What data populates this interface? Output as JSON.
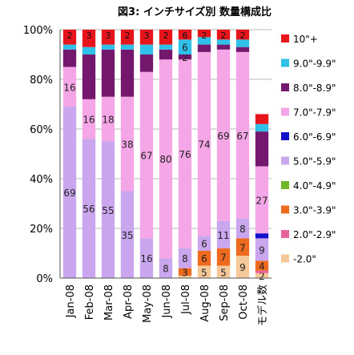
{
  "chart_data": {
    "type": "bar",
    "stacked": true,
    "title": "図3:  インチサイズ別  数量構成比",
    "xlabel": "",
    "ylabel": "",
    "ylim": [
      0,
      100
    ],
    "y_ticks": [
      "0%",
      "20%",
      "40%",
      "60%",
      "80%",
      "100%"
    ],
    "grid": true,
    "legend_position": "right",
    "categories": [
      "Jan-08",
      "Feb-08",
      "Mar-08",
      "Apr-08",
      "May-08",
      "Jun-08",
      "Jul-08",
      "Aug-08",
      "Sep-08",
      "Oct-08",
      "モデル数"
    ],
    "series": [
      {
        "name": "-2.0\"",
        "color": "#f5c89a",
        "values": [
          0,
          0,
          0,
          0,
          0,
          0,
          1,
          5,
          5,
          9,
          2
        ],
        "labels": [
          "",
          "",
          "",
          "",
          "",
          "",
          "",
          "5",
          "5",
          "9",
          "2"
        ]
      },
      {
        "name": "2.0\"-2.9\"",
        "color": "#e8609c",
        "values": [
          0,
          0,
          0,
          0,
          0,
          0,
          0,
          0,
          0,
          0,
          1
        ],
        "labels": [
          "",
          "",
          "",
          "",
          "",
          "",
          "",
          "",
          "",
          "",
          ""
        ]
      },
      {
        "name": "3.0\"-3.9\"",
        "color": "#ee6a1e",
        "values": [
          0,
          0,
          0,
          0,
          0,
          0,
          3,
          6,
          7,
          7,
          4
        ],
        "labels": [
          "",
          "",
          "",
          "",
          "",
          "",
          "3",
          "6",
          "7",
          "7",
          "4"
        ]
      },
      {
        "name": "4.0\"-4.9\"",
        "color": "#70b82a",
        "values": [
          0,
          0,
          0,
          0,
          0,
          0,
          0,
          0,
          0,
          0,
          0
        ],
        "labels": [
          "",
          "",
          "",
          "",
          "",
          "",
          "",
          "",
          "",
          "",
          ""
        ]
      },
      {
        "name": "5.0\"-5.9\"",
        "color": "#c9a6ee",
        "values": [
          69,
          56,
          55,
          35,
          16,
          8,
          8,
          6,
          11,
          8,
          9
        ],
        "labels": [
          "69",
          "56",
          "55",
          "35",
          "16",
          "8",
          "8",
          "6",
          "11",
          "8",
          "9"
        ]
      },
      {
        "name": "6.0\"-6.9\"",
        "color": "#1111cc",
        "values": [
          0,
          0,
          0,
          0,
          0,
          0,
          0,
          0,
          0,
          0,
          2
        ],
        "labels": [
          "",
          "",
          "",
          "",
          "",
          "",
          "",
          "",
          "",
          "",
          ""
        ]
      },
      {
        "name": "7.0\"-7.9\"",
        "color": "#f4a6e6",
        "values": [
          16,
          16,
          18,
          38,
          67,
          80,
          76,
          74,
          69,
          67,
          27
        ],
        "labels": [
          "16",
          "16",
          "18",
          "38",
          "67",
          "80",
          "76",
          "74",
          "69",
          "67",
          "27"
        ]
      },
      {
        "name": "8.0\"-8.9\"",
        "color": "#74186e",
        "values": [
          7,
          18,
          19,
          19,
          7,
          4,
          2,
          3,
          2,
          2,
          14
        ],
        "labels": [
          "",
          "",
          "",
          "",
          "",
          "",
          "2",
          "",
          "",
          "",
          ""
        ]
      },
      {
        "name": "9.0\"-9.9\"",
        "color": "#2ec0e8",
        "values": [
          2,
          3,
          2,
          2,
          4,
          2,
          6,
          3,
          2,
          3,
          3
        ],
        "labels": [
          "",
          "",
          "",
          "",
          "",
          "",
          "6",
          "",
          "",
          "",
          ""
        ]
      },
      {
        "name": "10\"+",
        "color": "#e8141c",
        "values": [
          6,
          7,
          6,
          6,
          6,
          6,
          4,
          3,
          4,
          4,
          4
        ],
        "labels": [
          "",
          "",
          "",
          "",
          "",
          "",
          "",
          "",
          "",
          "",
          ""
        ]
      }
    ],
    "top_labels": [
      "2",
      "3",
      "3",
      "2",
      "3",
      "2",
      "6",
      "2",
      "2",
      "2",
      ""
    ]
  }
}
